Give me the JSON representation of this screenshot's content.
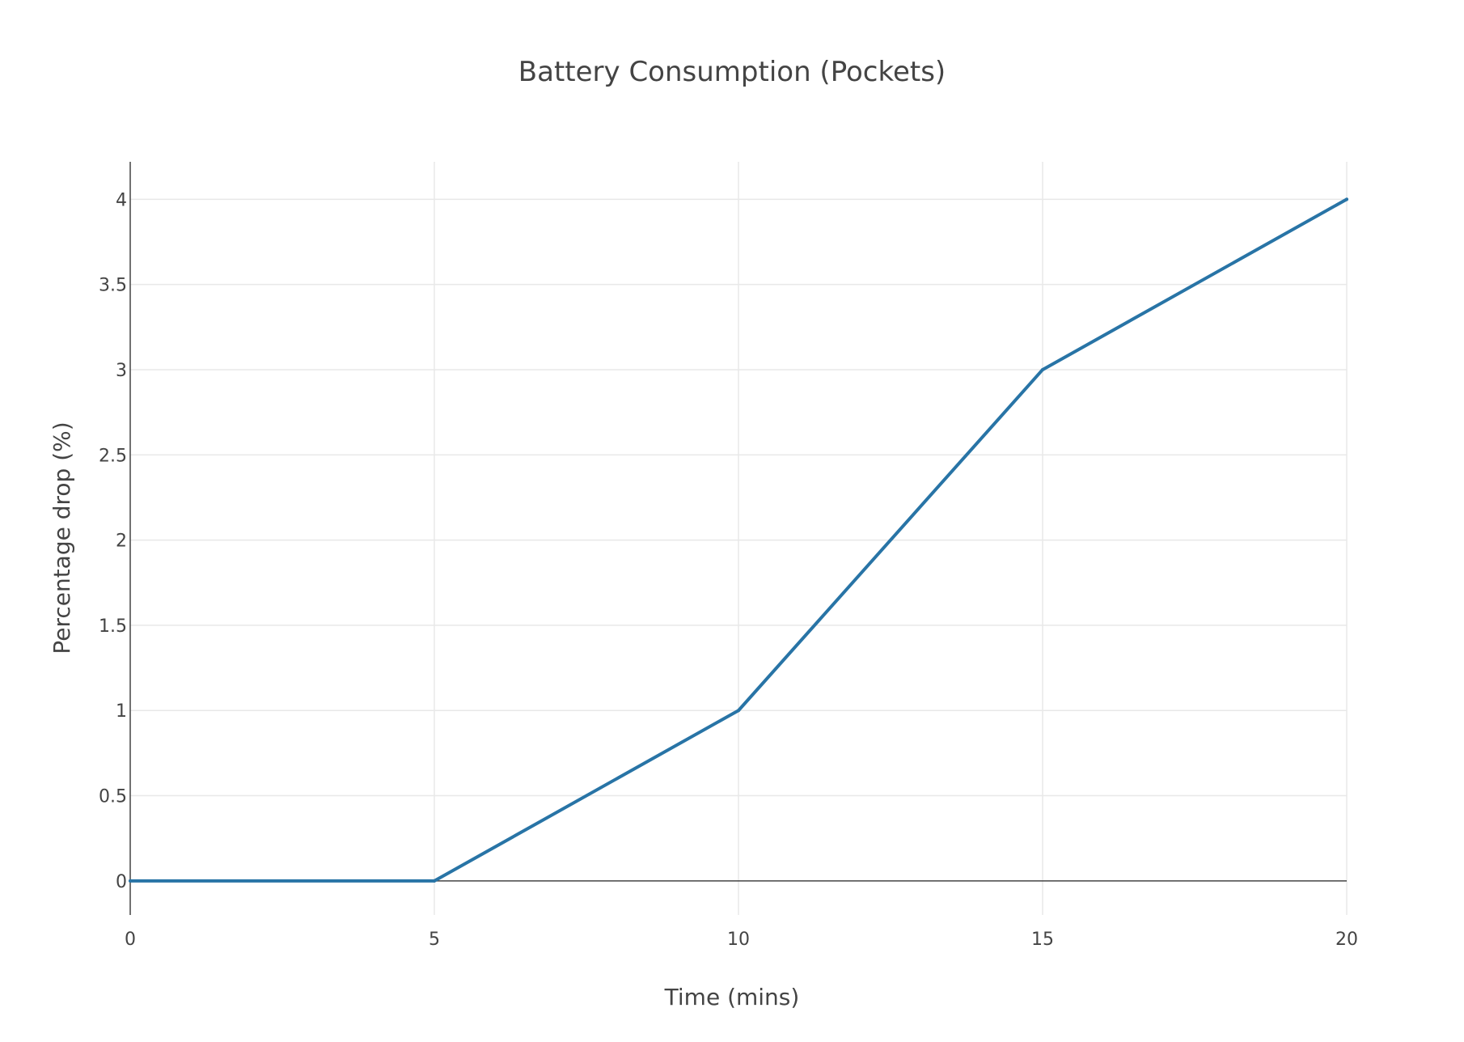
{
  "chart_data": {
    "type": "line",
    "title": "Battery Consumption (Pockets)",
    "xlabel": "Time (mins)",
    "ylabel": "Percentage drop (%)",
    "x": [
      0,
      5,
      10,
      15,
      20
    ],
    "series": [
      {
        "values": [
          0,
          0,
          1,
          3,
          4
        ],
        "color": "#2874a6"
      }
    ],
    "xlim": [
      0,
      20
    ],
    "ylim": [
      -0.2,
      4.22
    ],
    "xticks": [
      0,
      5,
      10,
      15,
      20
    ],
    "xtick_labels": [
      "0",
      "5",
      "10",
      "15",
      "20"
    ],
    "yticks": [
      0,
      0.5,
      1,
      1.5,
      2,
      2.5,
      3,
      3.5,
      4
    ],
    "ytick_labels": [
      "0",
      "0.5",
      "1",
      "1.5",
      "2",
      "2.5",
      "3",
      "3.5",
      "4"
    ],
    "grid": true,
    "legend": "none",
    "colors": {
      "line": "#2874a6",
      "grid": "#e8e8e8",
      "axis": "#444444",
      "zeroline": "#444444",
      "text": "#444444"
    }
  }
}
